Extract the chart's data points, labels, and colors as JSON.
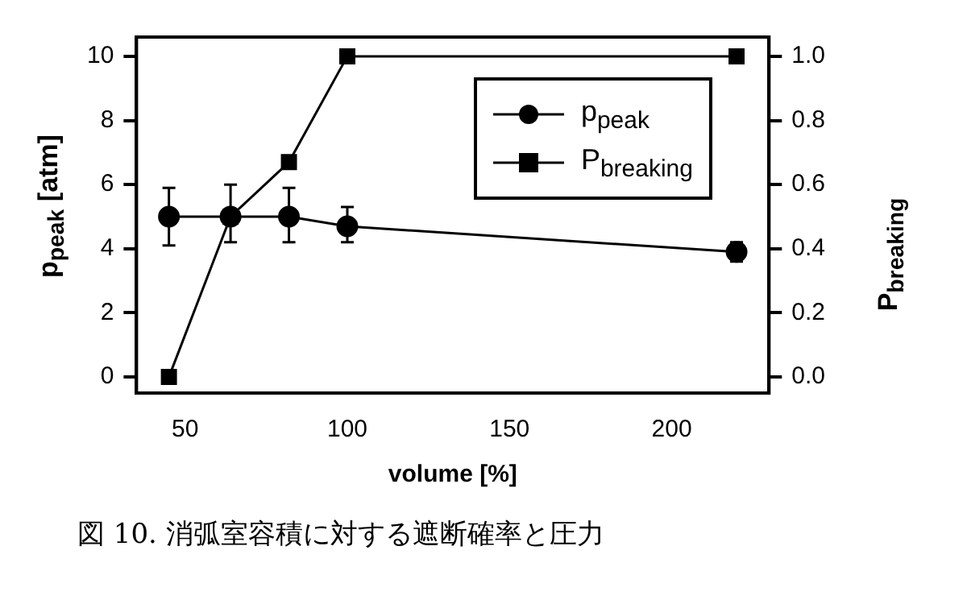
{
  "chart_data": {
    "type": "line",
    "xlabel": "volume [%]",
    "ylabel": "p$_{peak}$ [atm]",
    "y2label": "P$_{breaking}$",
    "annotations": [
      "図 10. 消弧室容積に対する遮断確率と圧力"
    ],
    "x": [
      45,
      64,
      82,
      100,
      220
    ],
    "series": [
      {
        "name": "p$_{peak}$",
        "color": "#000000",
        "marker": "circle",
        "values": [
          5.0,
          5.0,
          5.0,
          4.7,
          3.9
        ],
        "errors": [
          [
            4.1,
            5.9
          ],
          [
            4.2,
            6.0
          ],
          [
            4.2,
            5.9
          ],
          [
            4.2,
            5.3
          ],
          [
            3.6,
            4.2
          ]
        ]
      },
      {
        "name": "P$_{breaking}$",
        "color": "#000000",
        "marker": "square",
        "axis": "y2",
        "values": [
          0.0,
          0.5,
          0.67,
          1.0,
          1.0
        ]
      }
    ],
    "xlim": [
      35,
      230
    ],
    "xticks": [
      50,
      100,
      150,
      200
    ],
    "ylim": [
      -0.5,
      10.6
    ],
    "yticks": [
      0,
      2,
      4,
      6,
      8,
      10
    ],
    "y2lim": [
      -0.05,
      1.06
    ],
    "y2ticks": [
      {
        "value": 0,
        "label": "0.0"
      },
      0.2,
      0.4,
      0.6,
      0.8,
      {
        "value": 1,
        "label": "1.0"
      }
    ],
    "grid": false,
    "legend": "top right",
    "line_style": "solid"
  }
}
